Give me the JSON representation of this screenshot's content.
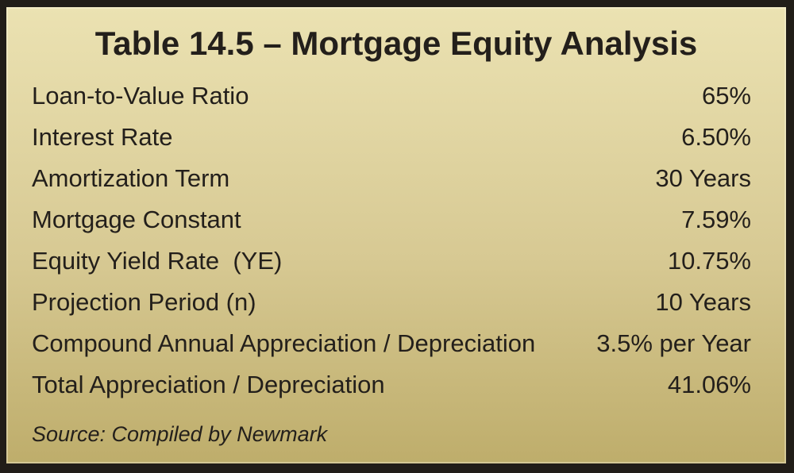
{
  "table": {
    "title": "Table 14.5 – Mortgage Equity Analysis",
    "rows": [
      {
        "label": "Loan-to-Value Ratio",
        "value": "65%"
      },
      {
        "label": "Interest Rate",
        "value": "6.50%"
      },
      {
        "label": "Amortization Term",
        "value": "30 Years"
      },
      {
        "label": "Mortgage Constant",
        "value": "7.59%"
      },
      {
        "label": "Equity Yield Rate  (YE)",
        "value": "10.75%"
      },
      {
        "label": "Projection Period (n)",
        "value": "10 Years"
      },
      {
        "label": "Compound Annual Appreciation / Depreciation",
        "value": "3.5% per Year"
      },
      {
        "label": "Total Appreciation / Depreciation",
        "value": "41.06%"
      }
    ],
    "source": "Source: Compiled by Newmark"
  },
  "chart_data": {
    "type": "table",
    "title": "Table 14.5 – Mortgage Equity Analysis",
    "categories": [
      "Loan-to-Value Ratio",
      "Interest Rate",
      "Amortization Term",
      "Mortgage Constant",
      "Equity Yield Rate (YE)",
      "Projection Period (n)",
      "Compound Annual Appreciation / Depreciation",
      "Total Appreciation / Depreciation"
    ],
    "values": [
      "65%",
      "6.50%",
      "30 Years",
      "7.59%",
      "10.75%",
      "10 Years",
      "3.5% per Year",
      "41.06%"
    ],
    "source": "Source: Compiled by Newmark"
  },
  "colors": {
    "background_top": "#EBE2B2",
    "background_mid": "#D7C993",
    "background_bottom": "#BEAD6B",
    "border": "#211D18",
    "text": "#231F1B"
  }
}
